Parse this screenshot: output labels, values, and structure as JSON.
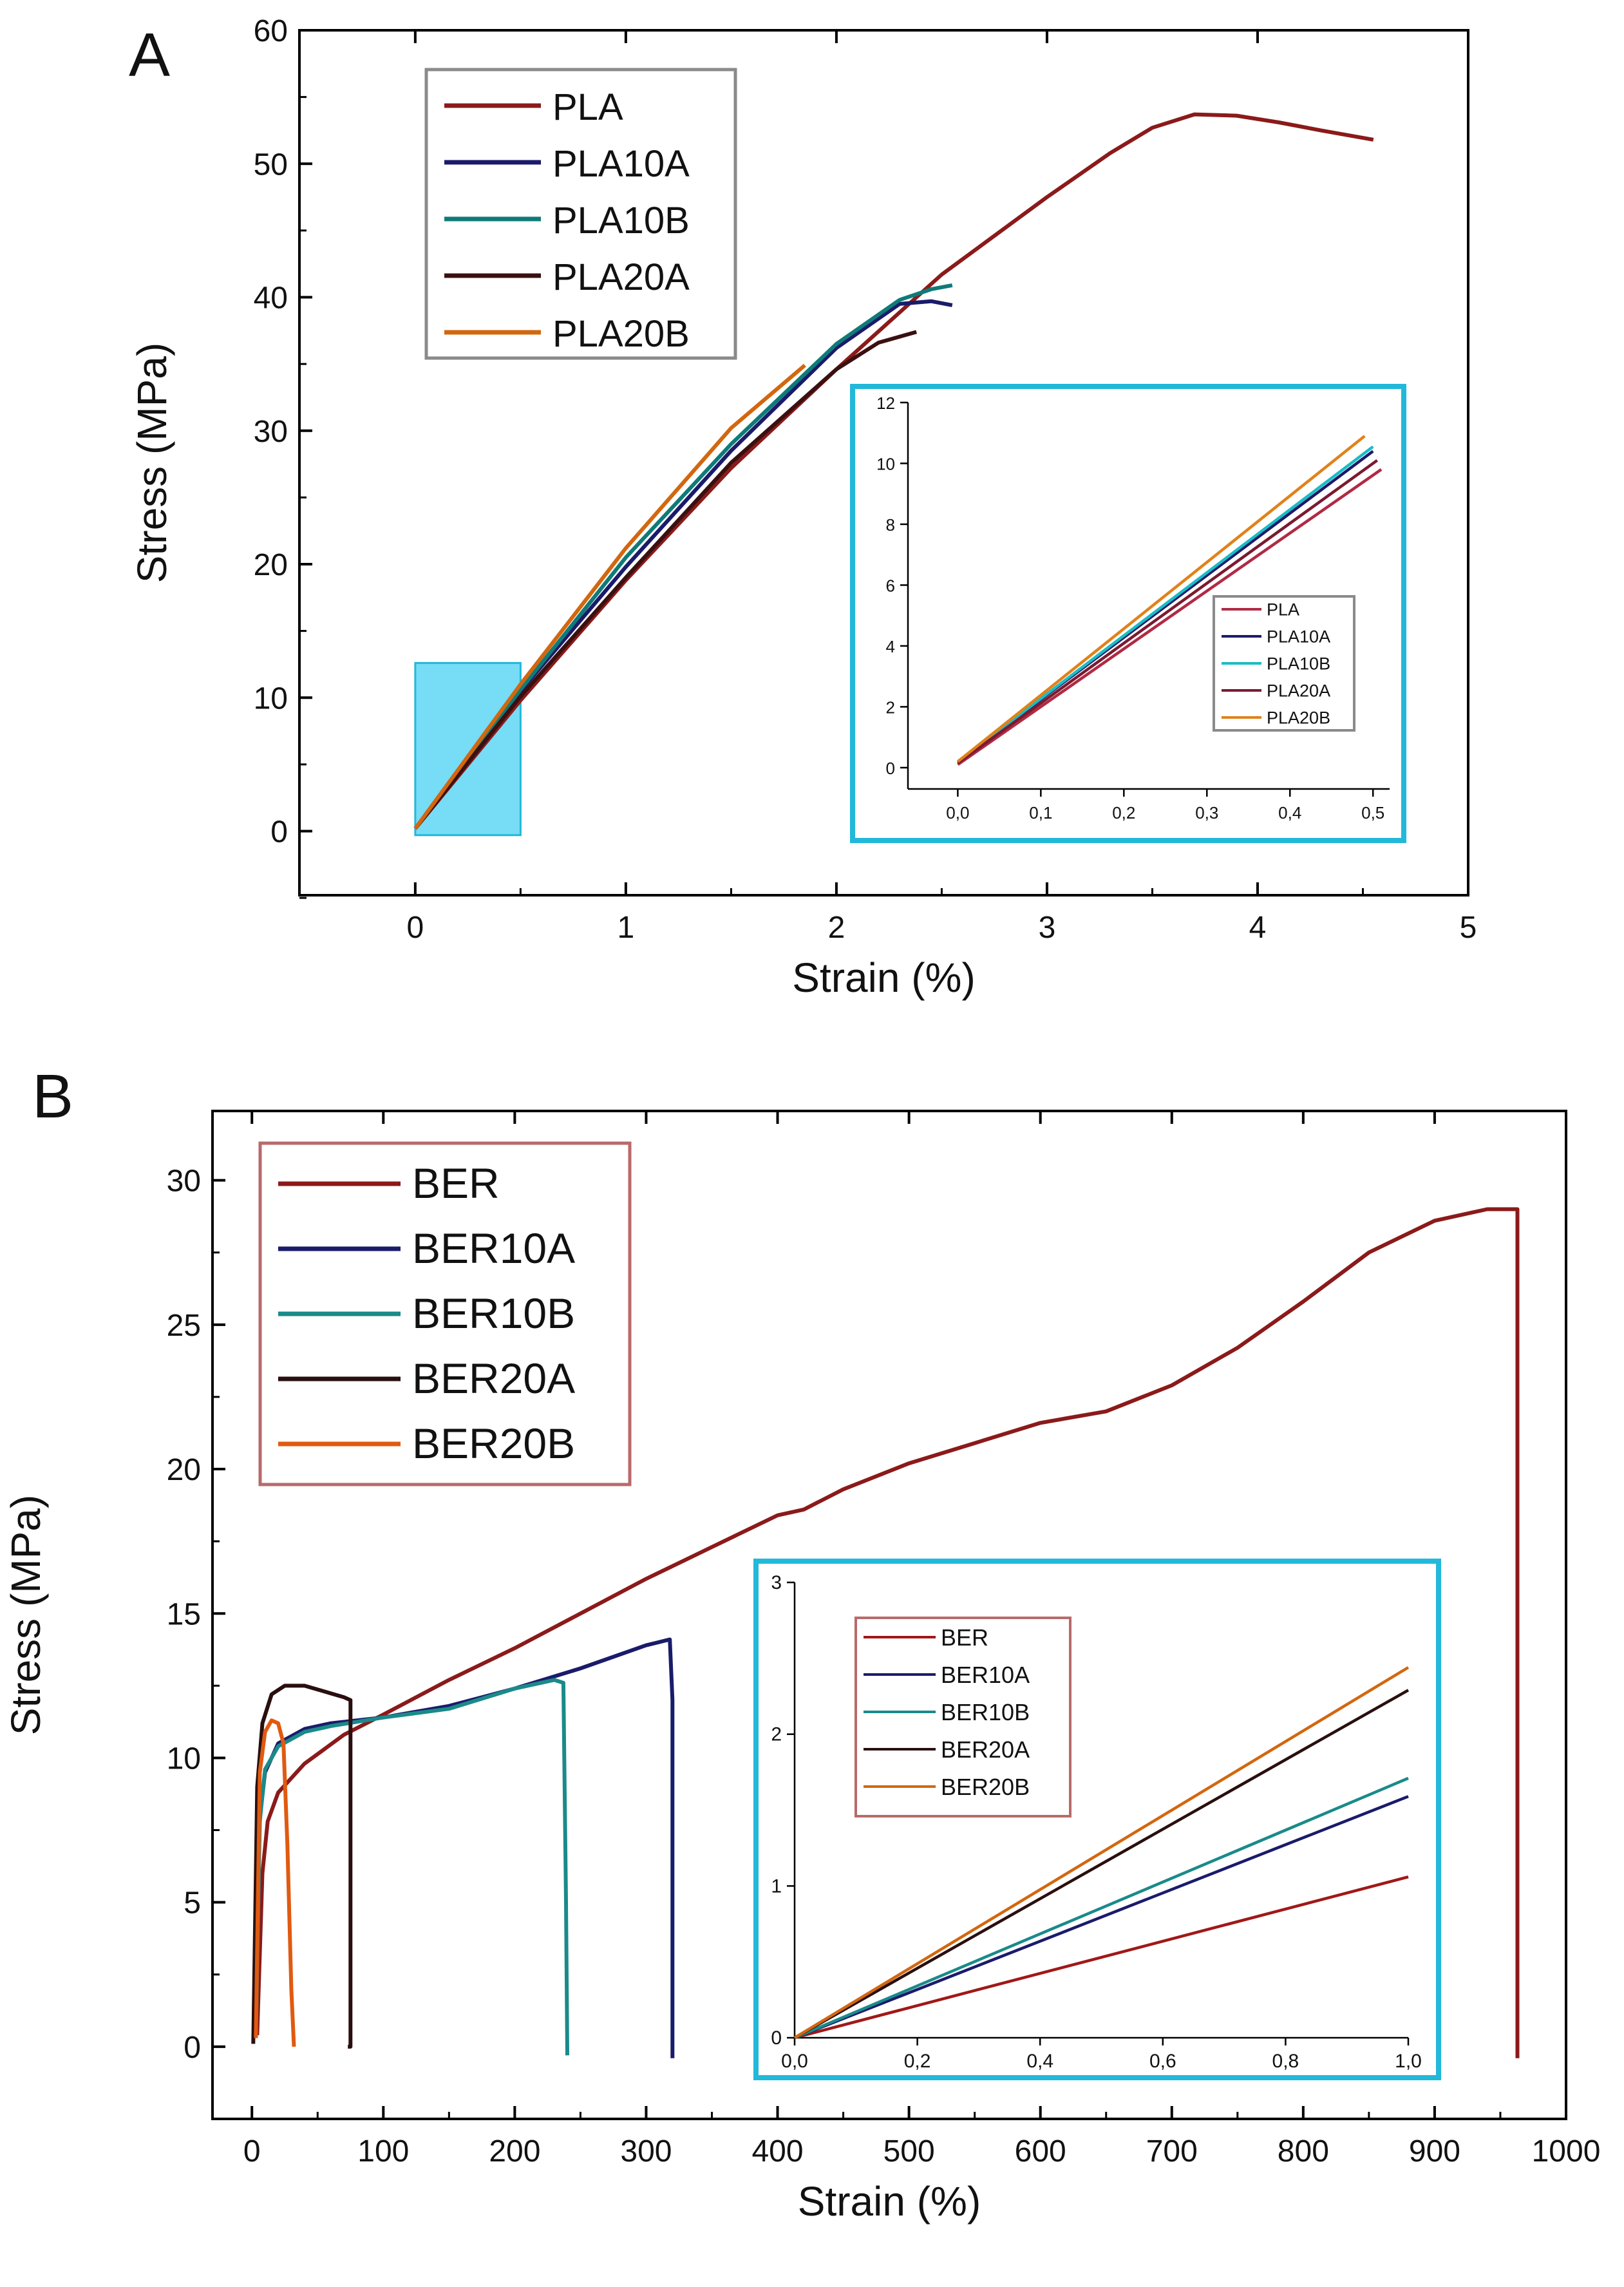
{
  "figure": {
    "colors": {
      "inset_border": "#22b8da",
      "highlight": "#5fd6f5",
      "legend_border_a": "#8a8a8a",
      "legend_border_b": "#b86a6a"
    }
  },
  "chart_data": [
    {
      "panel": "A",
      "type": "line",
      "xlabel": "Strain (%)",
      "ylabel": "Stress (MPa)",
      "xlim": [
        -0.55,
        5.0
      ],
      "ylim": [
        -4.8,
        60
      ],
      "xticks": [
        0,
        1,
        2,
        3,
        4,
        5
      ],
      "yticks": [
        0,
        10,
        20,
        30,
        40,
        50,
        60
      ],
      "x_tick_labels": [
        "0",
        "1",
        "2",
        "3",
        "4",
        "5"
      ],
      "y_tick_labels": [
        "0",
        "10",
        "20",
        "30",
        "40",
        "50",
        "60"
      ],
      "legend_position": "top-left",
      "highlight_region": {
        "x": [
          0.0,
          0.5
        ],
        "y": [
          -0.3,
          12.6
        ]
      },
      "series": [
        {
          "name": "PLA",
          "color": "#8b1a1a",
          "x": [
            0.0,
            0.5,
            1.0,
            1.5,
            2.0,
            2.5,
            3.0,
            3.3,
            3.5,
            3.7,
            3.9,
            4.1,
            4.3,
            4.55
          ],
          "y": [
            0.2,
            9.8,
            18.8,
            27.2,
            34.6,
            41.7,
            47.5,
            50.8,
            52.7,
            53.7,
            53.6,
            53.1,
            52.5,
            51.8
          ]
        },
        {
          "name": "PLA10A",
          "color": "#1b1b6b",
          "x": [
            0.0,
            0.5,
            1.0,
            1.5,
            2.0,
            2.3,
            2.45,
            2.55
          ],
          "y": [
            0.2,
            10.5,
            19.8,
            28.5,
            36.2,
            39.5,
            39.7,
            39.4
          ]
        },
        {
          "name": "PLA10B",
          "color": "#0f7b78",
          "x": [
            0.0,
            0.5,
            1.0,
            1.5,
            2.0,
            2.3,
            2.45,
            2.55
          ],
          "y": [
            0.2,
            10.6,
            20.5,
            29.0,
            36.5,
            39.8,
            40.6,
            40.9
          ]
        },
        {
          "name": "PLA20A",
          "color": "#3a1010",
          "x": [
            0.0,
            0.5,
            1.0,
            1.5,
            2.0,
            2.2,
            2.38
          ],
          "y": [
            0.2,
            10.1,
            19.0,
            27.6,
            34.6,
            36.6,
            37.4
          ]
        },
        {
          "name": "PLA20B",
          "color": "#d2670f",
          "x": [
            0.0,
            0.5,
            1.0,
            1.5,
            1.85
          ],
          "y": [
            0.2,
            11.0,
            21.2,
            30.2,
            34.9
          ]
        }
      ],
      "inset": {
        "type": "line",
        "xlim": [
          -0.06,
          0.52
        ],
        "ylim": [
          -0.7,
          12
        ],
        "xticks": [
          0.0,
          0.1,
          0.2,
          0.3,
          0.4,
          0.5
        ],
        "yticks": [
          0,
          2,
          4,
          6,
          8,
          10,
          12
        ],
        "x_tick_labels": [
          "0,0",
          "0,1",
          "0,2",
          "0,3",
          "0,4",
          "0,5"
        ],
        "y_tick_labels": [
          "0",
          "2",
          "4",
          "6",
          "8",
          "10",
          "12"
        ],
        "legend_position": "right",
        "series": [
          {
            "name": "PLA",
            "color": "#b02a44",
            "x": [
              0.0,
              0.51
            ],
            "y": [
              0.1,
              9.8
            ]
          },
          {
            "name": "PLA10A",
            "color": "#1b1b6b",
            "x": [
              0.0,
              0.5
            ],
            "y": [
              0.2,
              10.4
            ]
          },
          {
            "name": "PLA10B",
            "color": "#1abcc4",
            "x": [
              0.0,
              0.5
            ],
            "y": [
              0.2,
              10.55
            ]
          },
          {
            "name": "PLA20A",
            "color": "#7a1a30",
            "x": [
              0.0,
              0.505
            ],
            "y": [
              0.15,
              10.1
            ]
          },
          {
            "name": "PLA20B",
            "color": "#e0821a",
            "x": [
              0.0,
              0.49
            ],
            "y": [
              0.2,
              10.9
            ]
          }
        ]
      }
    },
    {
      "panel": "B",
      "type": "line",
      "xlabel": "Strain (%)",
      "ylabel": "Stress (MPa)",
      "xlim": [
        -30,
        1000
      ],
      "ylim": [
        -2.5,
        32.4
      ],
      "xticks": [
        0,
        100,
        200,
        300,
        400,
        500,
        600,
        700,
        800,
        900,
        1000
      ],
      "yticks": [
        0,
        5,
        10,
        15,
        20,
        25,
        30
      ],
      "x_tick_labels": [
        "0",
        "100",
        "200",
        "300",
        "400",
        "500",
        "600",
        "700",
        "800",
        "900",
        "1000"
      ],
      "y_tick_labels": [
        "0",
        "5",
        "10",
        "15",
        "20",
        "25",
        "30"
      ],
      "legend_position": "top-left",
      "series": [
        {
          "name": "BER",
          "color": "#8b1a1a",
          "x": [
            4,
            8,
            12,
            20,
            40,
            70,
            100,
            150,
            200,
            250,
            300,
            350,
            400,
            420,
            450,
            500,
            550,
            600,
            650,
            700,
            750,
            800,
            850,
            900,
            940,
            963,
            963
          ],
          "y": [
            0.4,
            6.0,
            7.8,
            8.8,
            9.8,
            10.8,
            11.5,
            12.7,
            13.8,
            15.0,
            16.2,
            17.3,
            18.4,
            18.6,
            19.3,
            20.2,
            20.9,
            21.6,
            22.0,
            22.9,
            24.2,
            25.8,
            27.5,
            28.6,
            29.0,
            29.0,
            -0.4
          ]
        },
        {
          "name": "BER10A",
          "color": "#1b1b6b",
          "x": [
            2,
            5,
            10,
            20,
            40,
            60,
            100,
            150,
            200,
            250,
            300,
            318,
            320,
            320
          ],
          "y": [
            0.3,
            7.5,
            9.5,
            10.5,
            11.0,
            11.2,
            11.4,
            11.8,
            12.4,
            13.1,
            13.9,
            14.1,
            12.0,
            -0.4
          ]
        },
        {
          "name": "BER10B",
          "color": "#1a8a8a",
          "x": [
            3,
            6,
            10,
            20,
            40,
            60,
            100,
            150,
            200,
            230,
            237,
            239,
            240
          ],
          "y": [
            0.3,
            7.8,
            9.6,
            10.4,
            10.9,
            11.1,
            11.4,
            11.7,
            12.4,
            12.7,
            12.6,
            5.0,
            -0.3
          ]
        },
        {
          "name": "BER20A",
          "color": "#2a0f0f",
          "x": [
            1,
            4,
            8,
            15,
            25,
            40,
            55,
            70,
            75,
            75,
            73
          ],
          "y": [
            0.1,
            9.0,
            11.2,
            12.2,
            12.5,
            12.5,
            12.3,
            12.1,
            12.0,
            0.0,
            0.0
          ]
        },
        {
          "name": "BER20B",
          "color": "#e05a10",
          "x": [
            3,
            6,
            10,
            15,
            20,
            24,
            27,
            30,
            32
          ],
          "y": [
            0.3,
            9.5,
            10.9,
            11.3,
            11.2,
            10.5,
            7.0,
            2.0,
            0.0
          ]
        }
      ],
      "inset": {
        "type": "line",
        "xlim": [
          0.0,
          1.0
        ],
        "ylim": [
          0,
          3.0
        ],
        "xticks": [
          0.0,
          0.2,
          0.4,
          0.6,
          0.8,
          1.0
        ],
        "yticks": [
          0,
          1,
          2,
          3
        ],
        "x_tick_labels": [
          "0,0",
          "0,2",
          "0,4",
          "0,6",
          "0,8",
          "1,0"
        ],
        "y_tick_labels": [
          "0",
          "1",
          "2",
          "3"
        ],
        "legend_position": "top-left",
        "series": [
          {
            "name": "BER",
            "color": "#a01818",
            "x": [
              0.0,
              1.0
            ],
            "y": [
              0.0,
              1.06
            ]
          },
          {
            "name": "BER10A",
            "color": "#1b1b6b",
            "x": [
              0.0,
              1.0
            ],
            "y": [
              0.0,
              1.59
            ]
          },
          {
            "name": "BER10B",
            "color": "#1a8a8a",
            "x": [
              0.0,
              1.0
            ],
            "y": [
              0.0,
              1.71
            ]
          },
          {
            "name": "BER20A",
            "color": "#2a0f0f",
            "x": [
              0.0,
              1.0
            ],
            "y": [
              0.0,
              2.29
            ]
          },
          {
            "name": "BER20B",
            "color": "#d2670f",
            "x": [
              0.0,
              1.0
            ],
            "y": [
              0.0,
              2.44
            ]
          }
        ]
      }
    }
  ]
}
